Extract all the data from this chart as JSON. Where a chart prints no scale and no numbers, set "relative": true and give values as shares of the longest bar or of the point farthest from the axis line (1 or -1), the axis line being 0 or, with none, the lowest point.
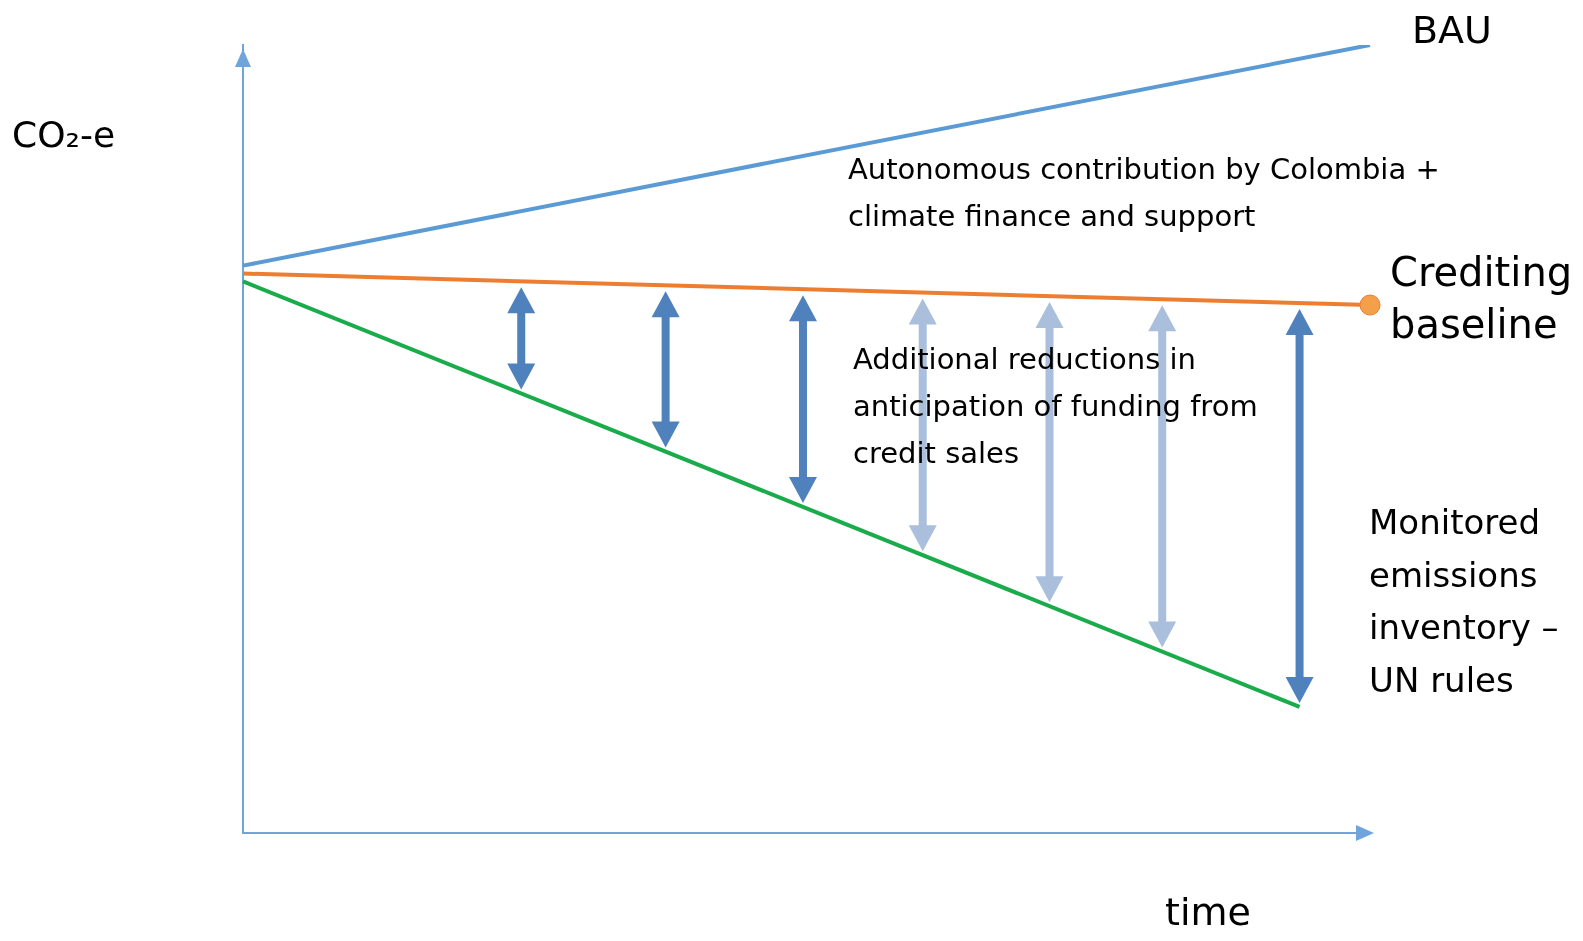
{
  "chart_data": {
    "type": "line",
    "relative": true,
    "xlabel": "time",
    "ylabel": "CO₂-e",
    "legend": false,
    "grid": false,
    "categories": [
      null,
      null,
      null,
      null,
      null,
      null,
      null,
      null,
      null,
      null,
      null,
      null,
      null,
      null,
      null,
      null,
      null
    ],
    "series": [
      {
        "name": "BAU",
        "color": "#5b9bd5",
        "values": [
          0.72,
          null,
          null,
          null,
          null,
          null,
          null,
          null,
          null,
          null,
          null,
          null,
          null,
          null,
          null,
          null,
          1
        ]
      },
      {
        "name": "Crediting baseline",
        "color": "#ed7d31",
        "marker": "circle",
        "values": [
          0.71,
          null,
          null,
          null,
          null,
          null,
          null,
          null,
          null,
          null,
          null,
          null,
          null,
          null,
          null,
          null,
          0.67
        ]
      },
      {
        "name": "Monitored emissions inventory – UN rules",
        "color": "#1aab4a",
        "values": [
          0.7,
          null,
          null,
          null,
          null,
          null,
          null,
          null,
          null,
          null,
          null,
          null,
          null,
          null,
          null,
          0.16,
          null
        ]
      }
    ],
    "annotations": [
      "Autonomous contribution by Colombia + climate finance and support",
      "Additional reductions in anticipation of funding from credit sales"
    ]
  }
}
